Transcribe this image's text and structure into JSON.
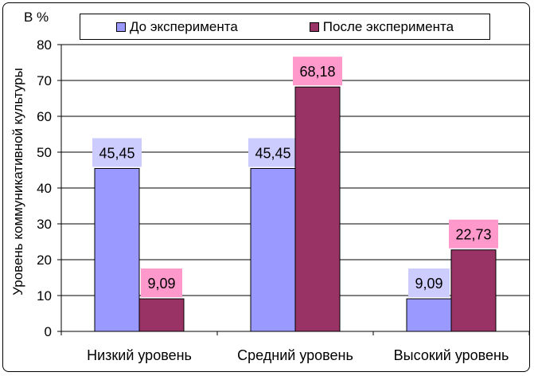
{
  "chart_data": {
    "type": "bar",
    "unit_label": "В %",
    "ylabel": "Уровень коммуникативной культуры",
    "xlabel": "",
    "title": "",
    "categories": [
      "Низкий уровень",
      "Средний уровень",
      "Высокий уровень"
    ],
    "series": [
      {
        "name": "До эксперимента",
        "values": [
          45.45,
          45.45,
          9.09
        ],
        "labels": [
          "45,45",
          "45,45",
          "9,09"
        ],
        "color": "#9999ff",
        "label_bg": "#ccccff"
      },
      {
        "name": "После эксперимента",
        "values": [
          9.09,
          68.18,
          22.73
        ],
        "labels": [
          "9,09",
          "68,18",
          "22,73"
        ],
        "color": "#993366",
        "label_bg": "#ff99cc"
      }
    ],
    "ylim": [
      0,
      80
    ],
    "yticks": [
      "0",
      "10",
      "20",
      "30",
      "40",
      "50",
      "60",
      "70",
      "80"
    ],
    "grid": true,
    "legend_position": "top"
  }
}
